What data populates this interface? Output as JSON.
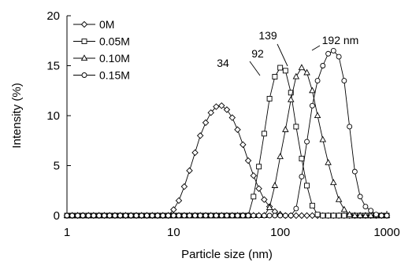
{
  "chart_data": {
    "type": "line",
    "title": "",
    "xlabel": "Particle size (nm)",
    "ylabel": "Intensity (%)",
    "xscale": "log",
    "xlim": [
      1,
      1000
    ],
    "ylim": [
      0,
      20
    ],
    "x_ticks": [
      "1",
      "10",
      "100",
      "1000"
    ],
    "y_ticks": [
      "0",
      "5",
      "10",
      "15",
      "20"
    ],
    "grid": false,
    "legend_position": "top-left",
    "series": [
      {
        "name": "0M",
        "marker": "diamond",
        "x": [
          1.0,
          1.12,
          1.26,
          1.41,
          1.59,
          1.78,
          2.0,
          2.24,
          2.51,
          2.82,
          3.16,
          3.55,
          3.98,
          4.47,
          5.01,
          5.62,
          6.31,
          7.08,
          7.94,
          8.91,
          10.0,
          11.2,
          12.6,
          14.1,
          15.9,
          17.8,
          20.0,
          22.4,
          25.1,
          28.2,
          31.6,
          35.5,
          39.8,
          44.7,
          50.1,
          56.2,
          63.1,
          70.8,
          79.4,
          89.1,
          100,
          112,
          126,
          141,
          159,
          178,
          200,
          224,
          251,
          282,
          316,
          355,
          398,
          447,
          501,
          562,
          631,
          708,
          794,
          891,
          1000
        ],
        "y": [
          0,
          0,
          0,
          0,
          0,
          0,
          0,
          0,
          0,
          0,
          0,
          0,
          0,
          0,
          0,
          0,
          0,
          0,
          0,
          0,
          0.6,
          1.5,
          2.9,
          4.5,
          6.3,
          8.0,
          9.3,
          10.3,
          10.9,
          11.0,
          10.6,
          9.8,
          8.6,
          7.1,
          5.5,
          4.0,
          2.7,
          1.6,
          0.9,
          0.4,
          0.1,
          0,
          0,
          0,
          0,
          0,
          0,
          0,
          0,
          0,
          0,
          0,
          0,
          0,
          0,
          0,
          0,
          0,
          0,
          0,
          0
        ]
      },
      {
        "name": "0.05M",
        "marker": "square",
        "x": [
          1.0,
          1.12,
          1.26,
          1.41,
          1.59,
          1.78,
          2.0,
          2.24,
          2.51,
          2.82,
          3.16,
          3.55,
          3.98,
          4.47,
          5.01,
          5.62,
          6.31,
          7.08,
          7.94,
          8.91,
          10.0,
          11.2,
          12.6,
          14.1,
          15.9,
          17.8,
          20.0,
          22.4,
          25.1,
          28.2,
          31.6,
          35.5,
          39.8,
          44.7,
          50.1,
          56.2,
          63.1,
          70.8,
          79.4,
          89.1,
          100,
          112,
          126,
          141,
          159,
          178,
          200,
          224,
          251,
          282,
          316,
          355,
          398,
          447,
          501,
          562,
          631,
          708,
          794,
          891,
          1000
        ],
        "y": [
          0,
          0,
          0,
          0,
          0,
          0,
          0,
          0,
          0,
          0,
          0,
          0,
          0,
          0,
          0,
          0,
          0,
          0,
          0,
          0,
          0,
          0,
          0,
          0,
          0,
          0,
          0,
          0,
          0,
          0,
          0,
          0,
          0,
          0,
          0,
          1.9,
          4.9,
          8.2,
          11.7,
          13.9,
          14.8,
          14.5,
          12.3,
          8.9,
          5.7,
          3.0,
          1.0,
          0.1,
          0,
          0,
          0,
          0,
          0,
          0,
          0,
          0,
          0,
          0,
          0,
          0,
          0
        ]
      },
      {
        "name": "0.10M",
        "marker": "triangle",
        "x": [
          1.0,
          1.12,
          1.26,
          1.41,
          1.59,
          1.78,
          2.0,
          2.24,
          2.51,
          2.82,
          3.16,
          3.55,
          3.98,
          4.47,
          5.01,
          5.62,
          6.31,
          7.08,
          7.94,
          8.91,
          10.0,
          11.2,
          12.6,
          14.1,
          15.9,
          17.8,
          20.0,
          22.4,
          25.1,
          28.2,
          31.6,
          35.5,
          39.8,
          44.7,
          50.1,
          56.2,
          63.1,
          70.8,
          79.4,
          89.1,
          100,
          112,
          126,
          141,
          159,
          178,
          200,
          224,
          251,
          282,
          316,
          355,
          398,
          447,
          501,
          562,
          631,
          708,
          794,
          891,
          1000
        ],
        "y": [
          0,
          0,
          0,
          0,
          0,
          0,
          0,
          0,
          0,
          0,
          0,
          0,
          0,
          0,
          0,
          0,
          0,
          0,
          0,
          0,
          0,
          0,
          0,
          0,
          0,
          0,
          0,
          0,
          0,
          0,
          0,
          0,
          0,
          0,
          0,
          0,
          0,
          0,
          0.8,
          3.0,
          5.9,
          8.6,
          11.6,
          13.9,
          14.8,
          14.3,
          12.5,
          10.0,
          7.6,
          5.3,
          3.3,
          1.6,
          0.6,
          0.1,
          0,
          0,
          0,
          0,
          0,
          0,
          0
        ]
      },
      {
        "name": "0.15M",
        "marker": "circle",
        "x": [
          1.0,
          1.12,
          1.26,
          1.41,
          1.59,
          1.78,
          2.0,
          2.24,
          2.51,
          2.82,
          3.16,
          3.55,
          3.98,
          4.47,
          5.01,
          5.62,
          6.31,
          7.08,
          7.94,
          8.91,
          10.0,
          11.2,
          12.6,
          14.1,
          15.9,
          17.8,
          20.0,
          22.4,
          25.1,
          28.2,
          31.6,
          35.5,
          39.8,
          44.7,
          50.1,
          56.2,
          63.1,
          70.8,
          79.4,
          89.1,
          100,
          112,
          126,
          141,
          159,
          178,
          200,
          224,
          251,
          282,
          316,
          355,
          398,
          447,
          501,
          562,
          631,
          708,
          794,
          891,
          1000
        ],
        "y": [
          0,
          0,
          0,
          0,
          0,
          0,
          0,
          0,
          0,
          0,
          0,
          0,
          0,
          0,
          0,
          0,
          0,
          0,
          0,
          0,
          0,
          0,
          0,
          0,
          0,
          0,
          0,
          0,
          0,
          0,
          0,
          0,
          0,
          0,
          0,
          0,
          0,
          0,
          0,
          0,
          0,
          0,
          0,
          0.7,
          3.9,
          7.4,
          11.0,
          13.5,
          15.0,
          16.2,
          16.5,
          15.9,
          13.5,
          8.9,
          4.4,
          1.9,
          0.9,
          0.5,
          0.1,
          0,
          0
        ]
      }
    ],
    "annotations": [
      {
        "text": "34",
        "x": 34,
        "y": 11.0
      },
      {
        "text": "92",
        "x": 92,
        "y": 14.8
      },
      {
        "text": "139",
        "x": 139,
        "y": 14.8
      },
      {
        "text": "192 nm",
        "x": 192,
        "y": 16.5
      }
    ]
  }
}
